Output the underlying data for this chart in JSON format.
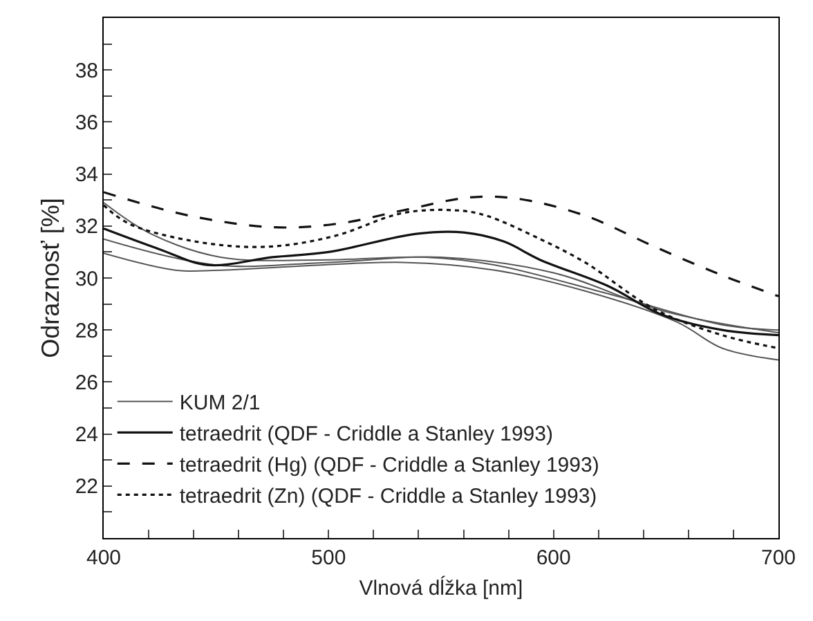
{
  "chart_data": {
    "type": "line",
    "xlabel": "Vlnová dĺžka [nm]",
    "ylabel": "Odraznosť [%]",
    "xlim": [
      400,
      700
    ],
    "ylim": [
      20,
      40
    ],
    "xticks": [
      400,
      {
        "value": 420,
        "label": null
      },
      {
        "value": 440,
        "label": null
      },
      {
        "value": 460,
        "label": null
      },
      {
        "value": 480,
        "label": null
      },
      500,
      {
        "value": 520,
        "label": null
      },
      {
        "value": 540,
        "label": null
      },
      {
        "value": 560,
        "label": null
      },
      {
        "value": 580,
        "label": null
      },
      600,
      {
        "value": 620,
        "label": null
      },
      {
        "value": 640,
        "label": null
      },
      {
        "value": 660,
        "label": null
      },
      {
        "value": 680,
        "label": null
      },
      700
    ],
    "yticks": [
      {
        "value": 21,
        "label": null
      },
      22,
      {
        "value": 23,
        "label": null
      },
      24,
      {
        "value": 25,
        "label": null
      },
      26,
      {
        "value": 27,
        "label": null
      },
      28,
      {
        "value": 29,
        "label": null
      },
      30,
      {
        "value": 31,
        "label": null
      },
      32,
      {
        "value": 33,
        "label": null
      },
      34,
      {
        "value": 35,
        "label": null
      },
      36,
      {
        "value": 37,
        "label": null
      },
      38,
      {
        "value": 39,
        "label": null
      }
    ],
    "legend": "bottom left",
    "marker": "none",
    "series": [
      {
        "name": "KUM 2/1",
        "color": "#555555",
        "line_style": "solid",
        "x": [
          400,
          421,
          452,
          500,
          543,
          574,
          624,
          675,
          700
        ],
        "values": [
          32.9,
          31.7,
          30.8,
          30.7,
          30.8,
          30.5,
          29.4,
          28.2,
          28.0
        ]
      },
      {
        "color": "#555555",
        "line_style": "solid",
        "x": [
          400,
          450,
          500,
          550,
          600,
          650,
          700
        ],
        "values": [
          31.5,
          30.5,
          30.6,
          30.8,
          30.2,
          28.7,
          27.9
        ]
      },
      {
        "color": "#555555",
        "line_style": "solid",
        "x": [
          400,
          432,
          452,
          533,
          574,
          614,
          655,
          675,
          700
        ],
        "values": [
          30.95,
          30.3,
          30.3,
          30.6,
          30.3,
          29.5,
          28.3,
          27.3,
          26.85
        ]
      },
      {
        "name": "tetraedrit (QDF - Criddle a Stanley 1993)",
        "color": "#111111",
        "line_style": "solid",
        "x": [
          400,
          425,
          446,
          475,
          500,
          539,
          560,
          578,
          594,
          624,
          648,
          675,
          700
        ],
        "values": [
          31.9,
          31.1,
          30.5,
          30.8,
          31.0,
          31.7,
          31.75,
          31.4,
          30.7,
          29.7,
          28.6,
          28.0,
          27.8
        ]
      },
      {
        "name": "tetraedrit (Hg) (QDF - Criddle a Stanley 1993)",
        "color": "#111111",
        "line_style": "dashed",
        "x": [
          400,
          438,
          476,
          505,
          533,
          563,
          584,
          614,
          645,
          675,
          700
        ],
        "values": [
          33.3,
          32.4,
          31.95,
          32.1,
          32.6,
          33.1,
          33.05,
          32.4,
          31.2,
          30.1,
          29.3
        ]
      },
      {
        "name": "tetraedrit (Zn) (QDF - Criddle a Stanley 1993)",
        "color": "#111111",
        "line_style": "dotted",
        "x": [
          400,
          411,
          441,
          472,
          502,
          533,
          557,
          570,
          594,
          614,
          645,
          675,
          700
        ],
        "values": [
          32.8,
          32.1,
          31.4,
          31.2,
          31.6,
          32.5,
          32.6,
          32.4,
          31.5,
          30.6,
          28.8,
          27.8,
          27.3
        ]
      }
    ]
  }
}
